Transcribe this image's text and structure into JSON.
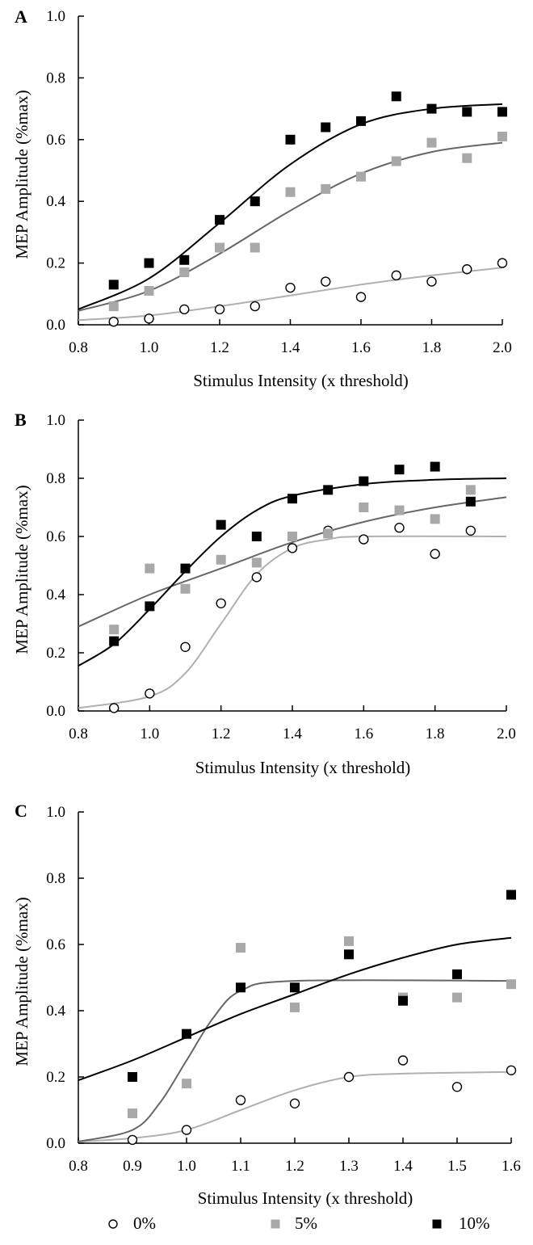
{
  "chart_data": [
    {
      "panel": "A",
      "type": "scatter",
      "xlabel": "Stimulus Intensity (x threshold)",
      "ylabel": "MEP Amplitude (%max)",
      "xlim": [
        0.8,
        2.0
      ],
      "ylim": [
        0.0,
        1.0
      ],
      "xticks": [
        "0.8",
        "1.0",
        "1.2",
        "1.4",
        "1.6",
        "1.8",
        "2.0"
      ],
      "yticks": [
        "0.0",
        "0.2",
        "0.4",
        "0.6",
        "0.8",
        "1.0"
      ],
      "series": [
        {
          "name": "0%",
          "marker": "open-circle",
          "color": "#000000",
          "points": [
            [
              0.9,
              0.01
            ],
            [
              1.0,
              0.02
            ],
            [
              1.1,
              0.05
            ],
            [
              1.2,
              0.05
            ],
            [
              1.3,
              0.06
            ],
            [
              1.4,
              0.12
            ],
            [
              1.5,
              0.14
            ],
            [
              1.6,
              0.09
            ],
            [
              1.7,
              0.16
            ],
            [
              1.8,
              0.14
            ],
            [
              1.9,
              0.18
            ],
            [
              2.0,
              0.2
            ]
          ],
          "fit": {
            "color": "#b0b0b0",
            "points": [
              [
                0.8,
                0.015
              ],
              [
                1.0,
                0.03
              ],
              [
                1.2,
                0.06
              ],
              [
                1.4,
                0.095
              ],
              [
                1.6,
                0.13
              ],
              [
                1.8,
                0.16
              ],
              [
                2.0,
                0.185
              ]
            ]
          }
        },
        {
          "name": "5%",
          "marker": "gray-square",
          "color": "#a8a8a8",
          "points": [
            [
              0.9,
              0.06
            ],
            [
              1.0,
              0.11
            ],
            [
              1.1,
              0.17
            ],
            [
              1.2,
              0.25
            ],
            [
              1.3,
              0.25
            ],
            [
              1.4,
              0.43
            ],
            [
              1.5,
              0.44
            ],
            [
              1.6,
              0.48
            ],
            [
              1.7,
              0.53
            ],
            [
              1.8,
              0.59
            ],
            [
              1.9,
              0.54
            ],
            [
              2.0,
              0.61
            ]
          ],
          "fit": {
            "color": "#666666",
            "points": [
              [
                0.8,
                0.045
              ],
              [
                1.0,
                0.11
              ],
              [
                1.2,
                0.23
              ],
              [
                1.4,
                0.37
              ],
              [
                1.6,
                0.49
              ],
              [
                1.8,
                0.56
              ],
              [
                2.0,
                0.59
              ]
            ]
          }
        },
        {
          "name": "10%",
          "marker": "black-square",
          "color": "#000000",
          "points": [
            [
              0.9,
              0.13
            ],
            [
              1.0,
              0.2
            ],
            [
              1.1,
              0.21
            ],
            [
              1.2,
              0.34
            ],
            [
              1.3,
              0.4
            ],
            [
              1.4,
              0.6
            ],
            [
              1.5,
              0.64
            ],
            [
              1.6,
              0.66
            ],
            [
              1.7,
              0.74
            ],
            [
              1.8,
              0.7
            ],
            [
              1.9,
              0.69
            ],
            [
              2.0,
              0.69
            ]
          ],
          "fit": {
            "color": "#000000",
            "points": [
              [
                0.8,
                0.05
              ],
              [
                1.0,
                0.15
              ],
              [
                1.2,
                0.33
              ],
              [
                1.4,
                0.52
              ],
              [
                1.6,
                0.65
              ],
              [
                1.8,
                0.7
              ],
              [
                2.0,
                0.715
              ]
            ]
          }
        }
      ]
    },
    {
      "panel": "B",
      "type": "scatter",
      "xlabel": "Stimulus Intensity (x threshold)",
      "ylabel": "MEP Amplitude (%max)",
      "xlim": [
        0.8,
        2.0
      ],
      "ylim": [
        0.0,
        1.0
      ],
      "xticks": [
        "0.8",
        "1.0",
        "1.2",
        "1.4",
        "1.6",
        "1.8",
        "2.0"
      ],
      "yticks": [
        "0.0",
        "0.2",
        "0.4",
        "0.6",
        "0.8",
        "1.0"
      ],
      "series": [
        {
          "name": "0%",
          "marker": "open-circle",
          "color": "#000000",
          "points": [
            [
              0.9,
              0.01
            ],
            [
              1.0,
              0.06
            ],
            [
              1.1,
              0.22
            ],
            [
              1.2,
              0.37
            ],
            [
              1.3,
              0.46
            ],
            [
              1.4,
              0.56
            ],
            [
              1.5,
              0.62
            ],
            [
              1.6,
              0.59
            ],
            [
              1.7,
              0.63
            ],
            [
              1.8,
              0.54
            ],
            [
              1.9,
              0.62
            ]
          ],
          "fit": {
            "color": "#b0b0b0",
            "points": [
              [
                0.8,
                0.01
              ],
              [
                1.0,
                0.05
              ],
              [
                1.1,
                0.13
              ],
              [
                1.2,
                0.3
              ],
              [
                1.3,
                0.47
              ],
              [
                1.4,
                0.56
              ],
              [
                1.5,
                0.59
              ],
              [
                1.6,
                0.6
              ],
              [
                2.0,
                0.6
              ]
            ]
          }
        },
        {
          "name": "5%",
          "marker": "gray-square",
          "color": "#a8a8a8",
          "points": [
            [
              0.9,
              0.28
            ],
            [
              1.0,
              0.49
            ],
            [
              1.1,
              0.42
            ],
            [
              1.2,
              0.52
            ],
            [
              1.3,
              0.51
            ],
            [
              1.4,
              0.6
            ],
            [
              1.5,
              0.61
            ],
            [
              1.6,
              0.7
            ],
            [
              1.7,
              0.69
            ],
            [
              1.8,
              0.66
            ],
            [
              1.9,
              0.76
            ]
          ],
          "fit": {
            "color": "#666666",
            "points": [
              [
                0.8,
                0.29
              ],
              [
                1.0,
                0.4
              ],
              [
                1.2,
                0.49
              ],
              [
                1.4,
                0.58
              ],
              [
                1.6,
                0.65
              ],
              [
                1.8,
                0.7
              ],
              [
                2.0,
                0.735
              ]
            ]
          }
        },
        {
          "name": "10%",
          "marker": "black-square",
          "color": "#000000",
          "points": [
            [
              0.9,
              0.24
            ],
            [
              1.0,
              0.36
            ],
            [
              1.1,
              0.49
            ],
            [
              1.2,
              0.64
            ],
            [
              1.3,
              0.6
            ],
            [
              1.4,
              0.73
            ],
            [
              1.5,
              0.76
            ],
            [
              1.6,
              0.79
            ],
            [
              1.7,
              0.83
            ],
            [
              1.8,
              0.84
            ],
            [
              1.9,
              0.72
            ]
          ],
          "fit": {
            "color": "#000000",
            "points": [
              [
                0.8,
                0.155
              ],
              [
                0.9,
                0.23
              ],
              [
                1.0,
                0.35
              ],
              [
                1.1,
                0.48
              ],
              [
                1.2,
                0.6
              ],
              [
                1.3,
                0.69
              ],
              [
                1.4,
                0.74
              ],
              [
                1.6,
                0.78
              ],
              [
                1.8,
                0.795
              ],
              [
                2.0,
                0.8
              ]
            ]
          }
        }
      ]
    },
    {
      "panel": "C",
      "type": "scatter",
      "xlabel": "Stimulus Intensity (x threshold)",
      "ylabel": "MEP Amplitude (%max)",
      "xlim": [
        0.8,
        1.6
      ],
      "ylim": [
        0.0,
        1.0
      ],
      "xticks": [
        "0.8",
        "0.9",
        "1.0",
        "1.1",
        "1.2",
        "1.3",
        "1.4",
        "1.5",
        "1.6"
      ],
      "yticks": [
        "0.0",
        "0.2",
        "0.4",
        "0.6",
        "0.8",
        "1.0"
      ],
      "series": [
        {
          "name": "0%",
          "marker": "open-circle",
          "color": "#000000",
          "points": [
            [
              0.9,
              0.01
            ],
            [
              1.0,
              0.04
            ],
            [
              1.1,
              0.13
            ],
            [
              1.2,
              0.12
            ],
            [
              1.3,
              0.2
            ],
            [
              1.4,
              0.25
            ],
            [
              1.5,
              0.17
            ],
            [
              1.6,
              0.22
            ]
          ],
          "fit": {
            "color": "#b0b0b0",
            "points": [
              [
                0.8,
                0.005
              ],
              [
                0.9,
                0.015
              ],
              [
                1.0,
                0.04
              ],
              [
                1.1,
                0.1
              ],
              [
                1.2,
                0.16
              ],
              [
                1.3,
                0.2
              ],
              [
                1.4,
                0.21
              ],
              [
                1.6,
                0.215
              ]
            ]
          }
        },
        {
          "name": "5%",
          "marker": "gray-square",
          "color": "#a8a8a8",
          "points": [
            [
              0.9,
              0.09
            ],
            [
              1.0,
              0.18
            ],
            [
              1.1,
              0.59
            ],
            [
              1.2,
              0.41
            ],
            [
              1.3,
              0.61
            ],
            [
              1.4,
              0.44
            ],
            [
              1.5,
              0.44
            ],
            [
              1.6,
              0.48
            ]
          ],
          "fit": {
            "color": "#666666",
            "points": [
              [
                0.8,
                0.005
              ],
              [
                0.9,
                0.04
              ],
              [
                0.95,
                0.12
              ],
              [
                1.0,
                0.25
              ],
              [
                1.05,
                0.38
              ],
              [
                1.1,
                0.46
              ],
              [
                1.2,
                0.49
              ],
              [
                1.6,
                0.49
              ]
            ]
          }
        },
        {
          "name": "10%",
          "marker": "black-square",
          "color": "#000000",
          "points": [
            [
              0.9,
              0.2
            ],
            [
              1.0,
              0.33
            ],
            [
              1.1,
              0.47
            ],
            [
              1.2,
              0.47
            ],
            [
              1.3,
              0.57
            ],
            [
              1.4,
              0.43
            ],
            [
              1.5,
              0.51
            ],
            [
              1.6,
              0.75
            ]
          ],
          "fit": {
            "color": "#000000",
            "points": [
              [
                0.8,
                0.19
              ],
              [
                0.9,
                0.25
              ],
              [
                1.0,
                0.32
              ],
              [
                1.1,
                0.39
              ],
              [
                1.2,
                0.45
              ],
              [
                1.3,
                0.51
              ],
              [
                1.4,
                0.56
              ],
              [
                1.5,
                0.6
              ],
              [
                1.6,
                0.62
              ]
            ]
          }
        }
      ]
    }
  ],
  "legend": [
    {
      "label": "0%",
      "marker": "open-circle"
    },
    {
      "label": "5%",
      "marker": "gray-square"
    },
    {
      "label": "10%",
      "marker": "black-square"
    }
  ]
}
